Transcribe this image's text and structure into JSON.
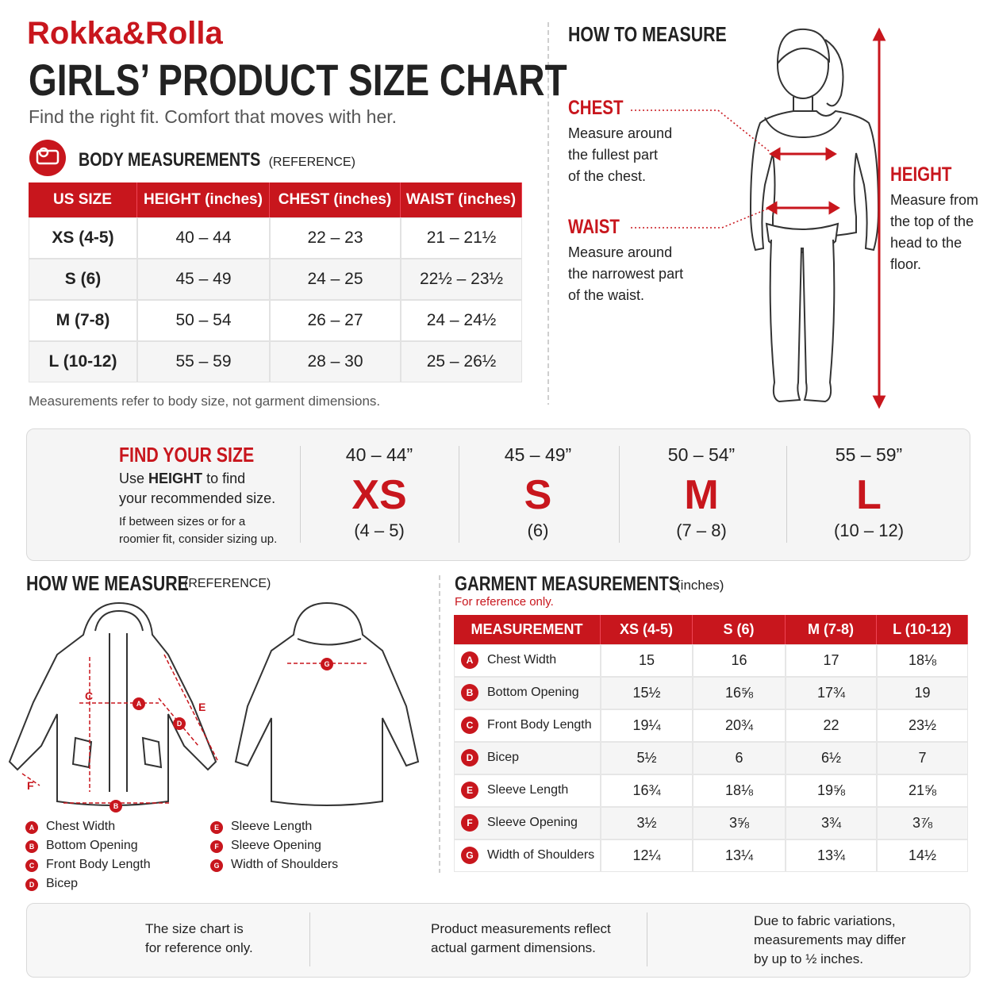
{
  "brand": "Rokka&Rolla",
  "title": "GIRLS’ PRODUCT SIZE CHART",
  "subtitle": "Find the right fit. Comfort that moves with her.",
  "body": {
    "heading": "BODY MEASUREMENTS",
    "qualifier": "(REFERENCE)",
    "columns": [
      "US SIZE",
      "HEIGHT (inches)",
      "CHEST (inches)",
      "WAIST (inches)"
    ],
    "rows": [
      [
        "XS (4-5)",
        "40 – 44",
        "22 – 23",
        "21 – 21½"
      ],
      [
        "S (6)",
        "45 – 49",
        "24 – 25",
        "22½ – 23½"
      ],
      [
        "M (7-8)",
        "50 – 54",
        "26 – 27",
        "24 – 24½"
      ],
      [
        "L (10-12)",
        "55 – 59",
        "28 – 30",
        "25 – 26½"
      ]
    ],
    "note": "Measurements refer to body size, not garment dimensions."
  },
  "how_to": {
    "heading": "HOW TO MEASURE",
    "items": [
      {
        "label": "CHEST",
        "lines": [
          "Measure around",
          "the fullest part",
          "of the chest."
        ]
      },
      {
        "label": "WAIST",
        "lines": [
          "Measure around",
          "the narrowest part",
          "of the waist."
        ]
      },
      {
        "label": "HEIGHT",
        "lines": [
          "Measure from",
          "the top of the",
          "head to the",
          "floor."
        ]
      }
    ]
  },
  "find": {
    "heading": "FIND YOUR SIZE",
    "lead": "Use",
    "emphasis": "HEIGHT",
    "lead_end": "to find",
    "line2": "your recommended size.",
    "notes": [
      "If between sizes or for a",
      "roomier fit, consider sizing up."
    ],
    "sizes": [
      {
        "height": "40 – 44”",
        "size": "XS",
        "range": "(4 – 5)"
      },
      {
        "height": "45 – 49”",
        "size": "S",
        "range": "(6)"
      },
      {
        "height": "50 – 54”",
        "size": "M",
        "range": "(7 – 8)"
      },
      {
        "height": "55 – 59”",
        "size": "L",
        "range": "(10 – 12)"
      }
    ]
  },
  "how_we": {
    "heading": "HOW WE MEASURE",
    "qualifier": "(REFERENCE)"
  },
  "garment": {
    "heading": "GARMENT MEASUREMENTS",
    "qualifier": "(inches)",
    "note": "For reference only.",
    "columns": [
      "MEASUREMENT",
      "XS (4-5)",
      "S (6)",
      "M (7-8)",
      "L (10-12)"
    ],
    "rows": [
      {
        "letter": "A",
        "name": "Chest Width",
        "values": [
          "15",
          "16",
          "17",
          "18⅛"
        ]
      },
      {
        "letter": "B",
        "name": "Bottom Opening",
        "values": [
          "15½",
          "16⅝",
          "17¾",
          "19"
        ]
      },
      {
        "letter": "C",
        "name": "Front Body Length",
        "values": [
          "19¼",
          "20¾",
          "22",
          "23½"
        ]
      },
      {
        "letter": "D",
        "name": "Bicep",
        "values": [
          "5½",
          "6",
          "6½",
          "7"
        ]
      },
      {
        "letter": "E",
        "name": "Sleeve Length",
        "values": [
          "16¾",
          "18⅛",
          "19⅝",
          "21⅝"
        ]
      },
      {
        "letter": "F",
        "name": "Sleeve Opening",
        "values": [
          "3½",
          "3⅝",
          "3¾",
          "3⅞"
        ]
      },
      {
        "letter": "G",
        "name": "Width of Shoulders",
        "values": [
          "12¼",
          "13¼",
          "13¾",
          "14½"
        ]
      }
    ]
  },
  "footer": {
    "items": [
      [
        "The size chart is",
        "for reference only."
      ],
      [
        "Product measurements reflect",
        "actual garment dimensions."
      ],
      [
        "Due to fabric variations,",
        "measurements may differ",
        "by up to ½ inches."
      ]
    ]
  }
}
